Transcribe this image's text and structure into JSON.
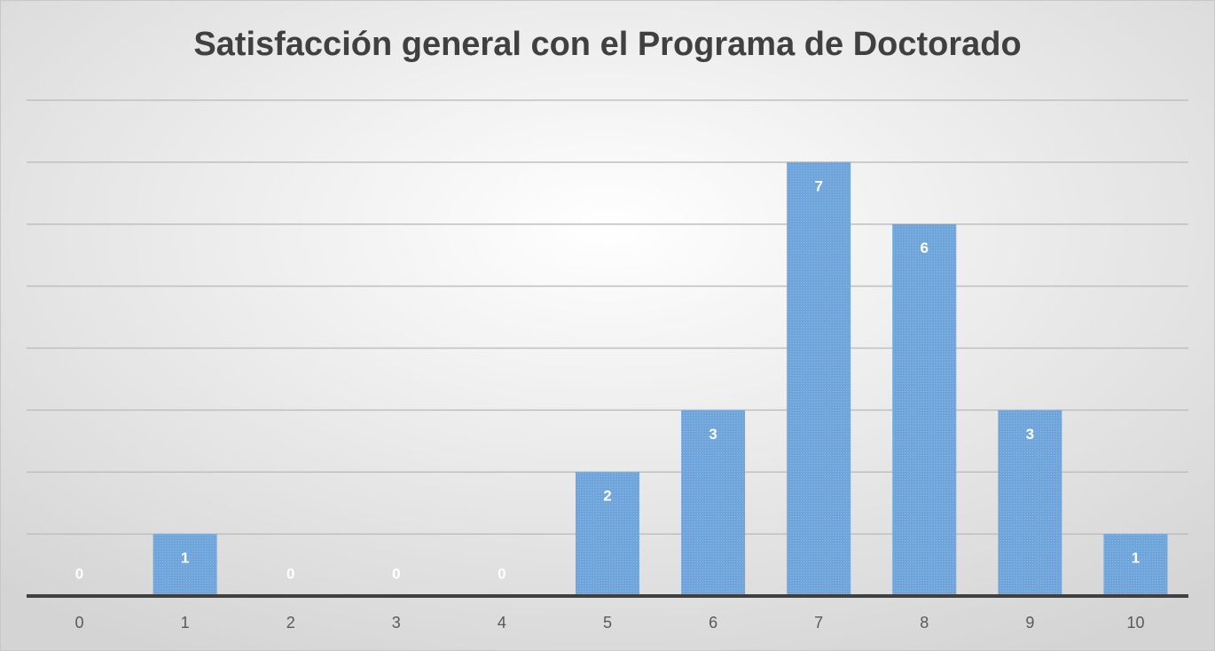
{
  "chart_data": {
    "type": "bar",
    "title": "Satisfacción general con el Programa de Doctorado",
    "categories": [
      "0",
      "1",
      "2",
      "3",
      "4",
      "5",
      "6",
      "7",
      "8",
      "9",
      "10"
    ],
    "values": [
      0,
      1,
      0,
      0,
      0,
      2,
      3,
      7,
      6,
      3,
      1
    ],
    "color": "#6fa5db",
    "ylim": [
      0,
      8
    ],
    "yticks": [
      0,
      1,
      2,
      3,
      4,
      5,
      6,
      7,
      8
    ],
    "grid": true
  }
}
